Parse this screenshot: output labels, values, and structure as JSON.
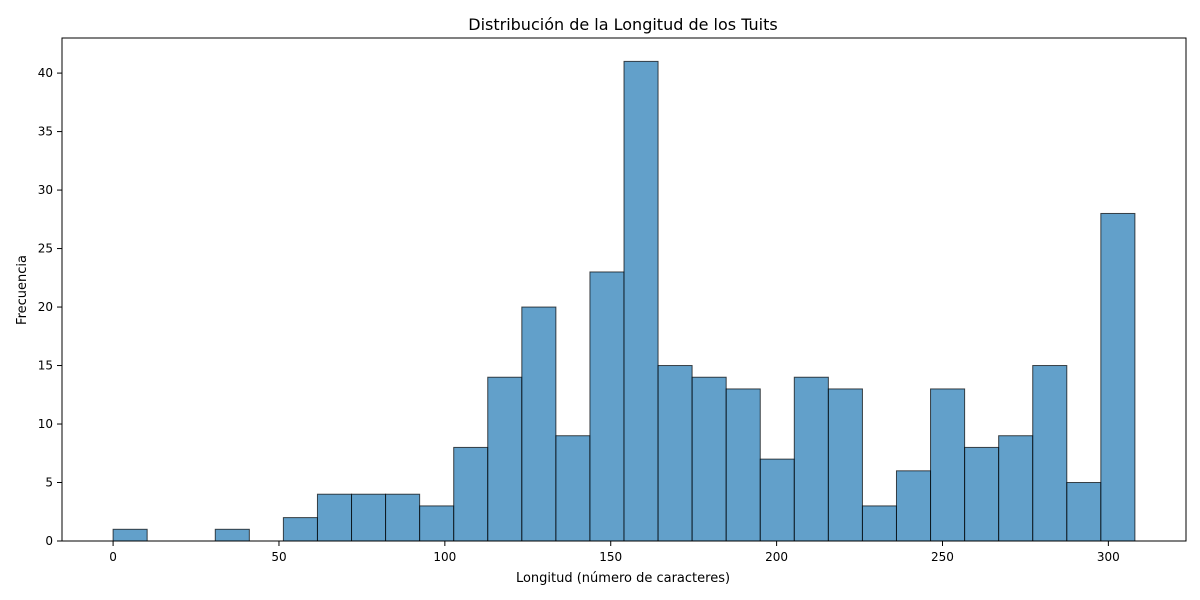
{
  "chart_data": {
    "type": "bar",
    "title": "Distribución de la Longitud de los Tuits",
    "xlabel": "Longitud (número de caracteres)",
    "ylabel": "Frecuencia",
    "bins": [
      {
        "start": 0.0,
        "end": 10.27,
        "count": 1
      },
      {
        "start": 10.27,
        "end": 20.53,
        "count": 0
      },
      {
        "start": 20.53,
        "end": 30.8,
        "count": 0
      },
      {
        "start": 30.8,
        "end": 41.07,
        "count": 1
      },
      {
        "start": 41.07,
        "end": 51.33,
        "count": 0
      },
      {
        "start": 51.33,
        "end": 61.6,
        "count": 2
      },
      {
        "start": 61.6,
        "end": 71.87,
        "count": 4
      },
      {
        "start": 71.87,
        "end": 82.13,
        "count": 4
      },
      {
        "start": 82.13,
        "end": 92.4,
        "count": 4
      },
      {
        "start": 92.4,
        "end": 102.67,
        "count": 3
      },
      {
        "start": 102.67,
        "end": 112.93,
        "count": 8
      },
      {
        "start": 112.93,
        "end": 123.2,
        "count": 14
      },
      {
        "start": 123.2,
        "end": 133.47,
        "count": 20
      },
      {
        "start": 133.47,
        "end": 143.73,
        "count": 9
      },
      {
        "start": 143.73,
        "end": 154.0,
        "count": 23
      },
      {
        "start": 154.0,
        "end": 164.27,
        "count": 41
      },
      {
        "start": 164.27,
        "end": 174.53,
        "count": 15
      },
      {
        "start": 174.53,
        "end": 184.8,
        "count": 14
      },
      {
        "start": 184.8,
        "end": 195.07,
        "count": 13
      },
      {
        "start": 195.07,
        "end": 205.33,
        "count": 7
      },
      {
        "start": 205.33,
        "end": 215.6,
        "count": 14
      },
      {
        "start": 215.6,
        "end": 225.87,
        "count": 13
      },
      {
        "start": 225.87,
        "end": 236.13,
        "count": 3
      },
      {
        "start": 236.13,
        "end": 246.4,
        "count": 6
      },
      {
        "start": 246.4,
        "end": 256.67,
        "count": 13
      },
      {
        "start": 256.67,
        "end": 266.93,
        "count": 8
      },
      {
        "start": 266.93,
        "end": 277.2,
        "count": 9
      },
      {
        "start": 277.2,
        "end": 287.47,
        "count": 15
      },
      {
        "start": 287.47,
        "end": 297.73,
        "count": 5
      },
      {
        "start": 297.73,
        "end": 308.0,
        "count": 28
      }
    ],
    "xlim": [
      -15.4,
      323.4
    ],
    "ylim": [
      0,
      43
    ],
    "xticks": [
      0,
      50,
      100,
      150,
      200,
      250,
      300
    ],
    "yticks": [
      0,
      5,
      10,
      15,
      20,
      25,
      30,
      35,
      40
    ],
    "bar_color": "#1f77b4",
    "bar_alpha": 0.7,
    "edge_color": "#000000",
    "grid": false,
    "legend": "none"
  }
}
